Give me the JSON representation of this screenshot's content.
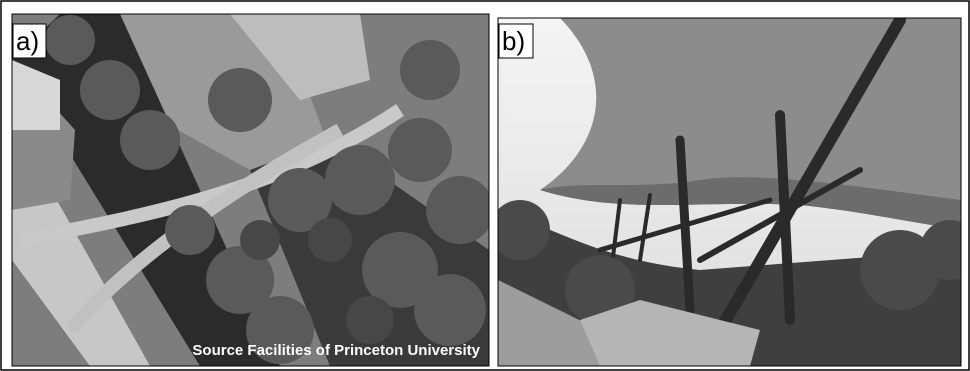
{
  "panels": [
    {
      "label": "a)",
      "caption": "Source Facilities of Princeton University"
    },
    {
      "label": "b)"
    }
  ]
}
